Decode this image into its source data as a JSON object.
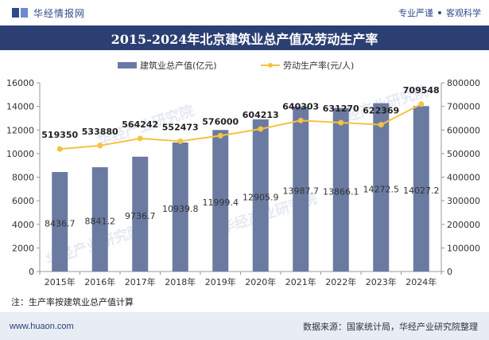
{
  "header": {
    "logo_text": "华经情报网",
    "slogan_left": "专业严谨",
    "slogan_right": "客观科学"
  },
  "colors": {
    "bar": "#6b7aa1",
    "line": "#f5c242",
    "title_bg": "#2b3f73",
    "footer_bg": "#e7ecf5"
  },
  "watermark": "华经产业研究院",
  "chart_data": {
    "type": "bar",
    "title": "2015-2024年北京建筑业总产值及劳动生产率",
    "categories": [
      "2015年",
      "2016年",
      "2017年",
      "2018年",
      "2019年",
      "2020年",
      "2021年",
      "2022年",
      "2023年",
      "2024年"
    ],
    "series": [
      {
        "name": "建筑业总产值(亿元)",
        "type": "bar",
        "axis": "left",
        "values": [
          8436.7,
          8841.2,
          9736.7,
          10939.8,
          11999.4,
          12905.9,
          13987.7,
          13866.1,
          14272.5,
          14027.2
        ]
      },
      {
        "name": "劳动生产率(元/人)",
        "type": "line",
        "axis": "right",
        "values": [
          519350,
          533880,
          564242,
          552473,
          576000,
          604213,
          640303,
          631270,
          622369,
          709548
        ]
      }
    ],
    "y_left": {
      "min": 0,
      "max": 16000,
      "ticks": [
        0,
        2000,
        4000,
        6000,
        8000,
        10000,
        12000,
        14000,
        16000
      ]
    },
    "y_right": {
      "min": 0,
      "max": 800000,
      "ticks": [
        0,
        100000,
        200000,
        300000,
        400000,
        500000,
        600000,
        700000,
        800000
      ]
    },
    "legend_position": "top-center",
    "grid": false
  },
  "note": "注：生产率按建筑业总产值计算",
  "footer": {
    "site": "www.huaon.com",
    "source": "数据来源：国家统计局，华经产业研究院整理"
  }
}
